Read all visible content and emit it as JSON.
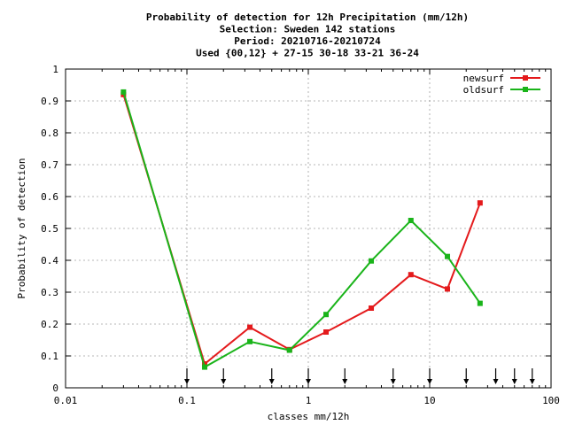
{
  "chart_data": {
    "type": "line",
    "title": [
      "Probability of detection  for 12h Precipitation (mm/12h)",
      "Selection: Sweden    142 stations",
      "Period: 20210716-20210724",
      "Used {00,12} + 27-15 30-18 33-21 36-24"
    ],
    "xlabel": "classes mm/12h",
    "ylabel": "Probability of detection",
    "x_scale": "log",
    "xlim": [
      0.01,
      100
    ],
    "ylim": [
      0,
      1
    ],
    "x_ticks": [
      0.01,
      0.1,
      1,
      10,
      100
    ],
    "x_tick_labels": [
      "0.01",
      "0.1",
      "1",
      "10",
      "100"
    ],
    "y_ticks": [
      0,
      0.1,
      0.2,
      0.3,
      0.4,
      0.5,
      0.6,
      0.7,
      0.8,
      0.9,
      1
    ],
    "y_tick_labels": [
      "0",
      "0.1",
      "0.2",
      "0.3",
      "0.4",
      "0.5",
      "0.6",
      "0.7",
      "0.8",
      "0.9",
      "1"
    ],
    "grid": true,
    "legend_position": "top-right",
    "class_limits": [
      0.1,
      0.2,
      0.5,
      1,
      2,
      5,
      10,
      20,
      35,
      50,
      70
    ],
    "series": [
      {
        "name": "newsurf",
        "color": "#e41a1c",
        "x": [
          0.03,
          0.14,
          0.33,
          0.7,
          1.4,
          3.3,
          7,
          14,
          26
        ],
        "y": [
          0.92,
          0.075,
          0.19,
          0.12,
          0.175,
          0.25,
          0.355,
          0.31,
          0.58
        ]
      },
      {
        "name": "oldsurf",
        "color": "#1ab41a",
        "x": [
          0.03,
          0.14,
          0.33,
          0.7,
          1.4,
          3.3,
          7,
          14,
          26
        ],
        "y": [
          0.928,
          0.065,
          0.145,
          0.118,
          0.23,
          0.398,
          0.525,
          0.412,
          0.265
        ]
      }
    ]
  }
}
